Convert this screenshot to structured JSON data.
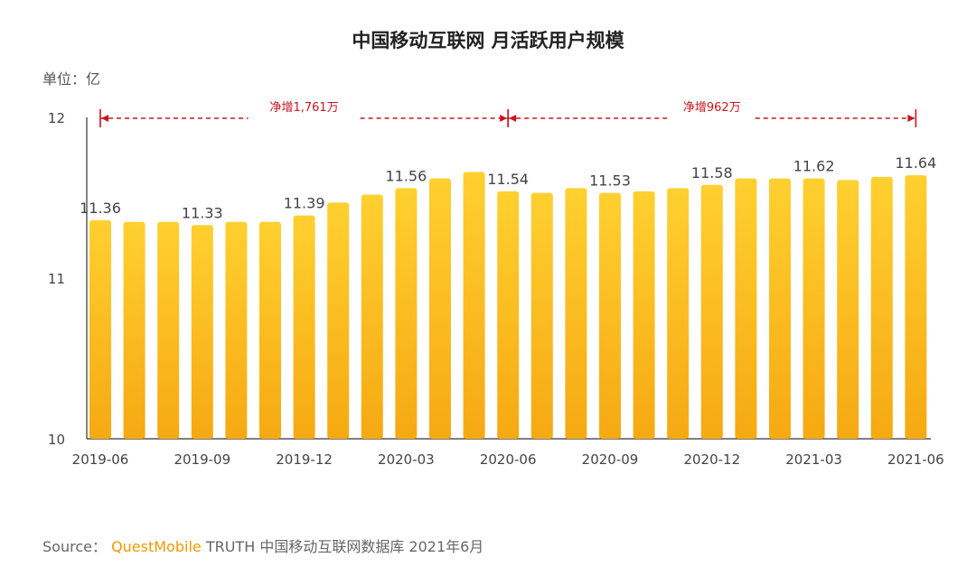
{
  "chart_data": {
    "type": "bar",
    "title": "中国移动互联网 月活跃用户规模",
    "unit_label": "单位：亿",
    "ylim": [
      10,
      12
    ],
    "yticks": [
      10,
      11,
      12
    ],
    "categories": [
      "2019-06",
      "2019-07",
      "2019-08",
      "2019-09",
      "2019-10",
      "2019-11",
      "2019-12",
      "2020-01",
      "2020-02",
      "2020-03",
      "2020-04",
      "2020-05",
      "2020-06",
      "2020-07",
      "2020-08",
      "2020-09",
      "2020-10",
      "2020-11",
      "2020-12",
      "2021-01",
      "2021-02",
      "2021-03",
      "2021-04",
      "2021-05",
      "2021-06"
    ],
    "xtick_labels": [
      "2019-06",
      "2019-09",
      "2019-12",
      "2020-03",
      "2020-06",
      "2020-09",
      "2020-12",
      "2021-03",
      "2021-06"
    ],
    "values": [
      11.36,
      11.35,
      11.35,
      11.33,
      11.35,
      11.35,
      11.39,
      11.47,
      11.52,
      11.56,
      11.62,
      11.66,
      11.54,
      11.53,
      11.56,
      11.53,
      11.54,
      11.56,
      11.58,
      11.62,
      11.62,
      11.62,
      11.61,
      11.63,
      11.64
    ],
    "data_labels": [
      {
        "index": 0,
        "text": "11.36"
      },
      {
        "index": 3,
        "text": "11.33"
      },
      {
        "index": 6,
        "text": "11.39"
      },
      {
        "index": 9,
        "text": "11.56"
      },
      {
        "index": 12,
        "text": "11.54"
      },
      {
        "index": 15,
        "text": "11.53"
      },
      {
        "index": 18,
        "text": "11.58"
      },
      {
        "index": 21,
        "text": "11.62"
      },
      {
        "index": 24,
        "text": "11.64"
      }
    ],
    "annotations": [
      {
        "text": "净增1,761万",
        "from_index": 0,
        "to_index": 12
      },
      {
        "text": "净增962万",
        "from_index": 12,
        "to_index": 24
      }
    ],
    "colors": {
      "bar_top": "#ffd030",
      "bar_bottom": "#f6a912",
      "annotation": "#c8161d"
    }
  },
  "source": {
    "prefix": "Source：",
    "brand": "QuestMobile",
    "suffix": "TRUTH 中国移动互联网数据库 2021年6月"
  }
}
